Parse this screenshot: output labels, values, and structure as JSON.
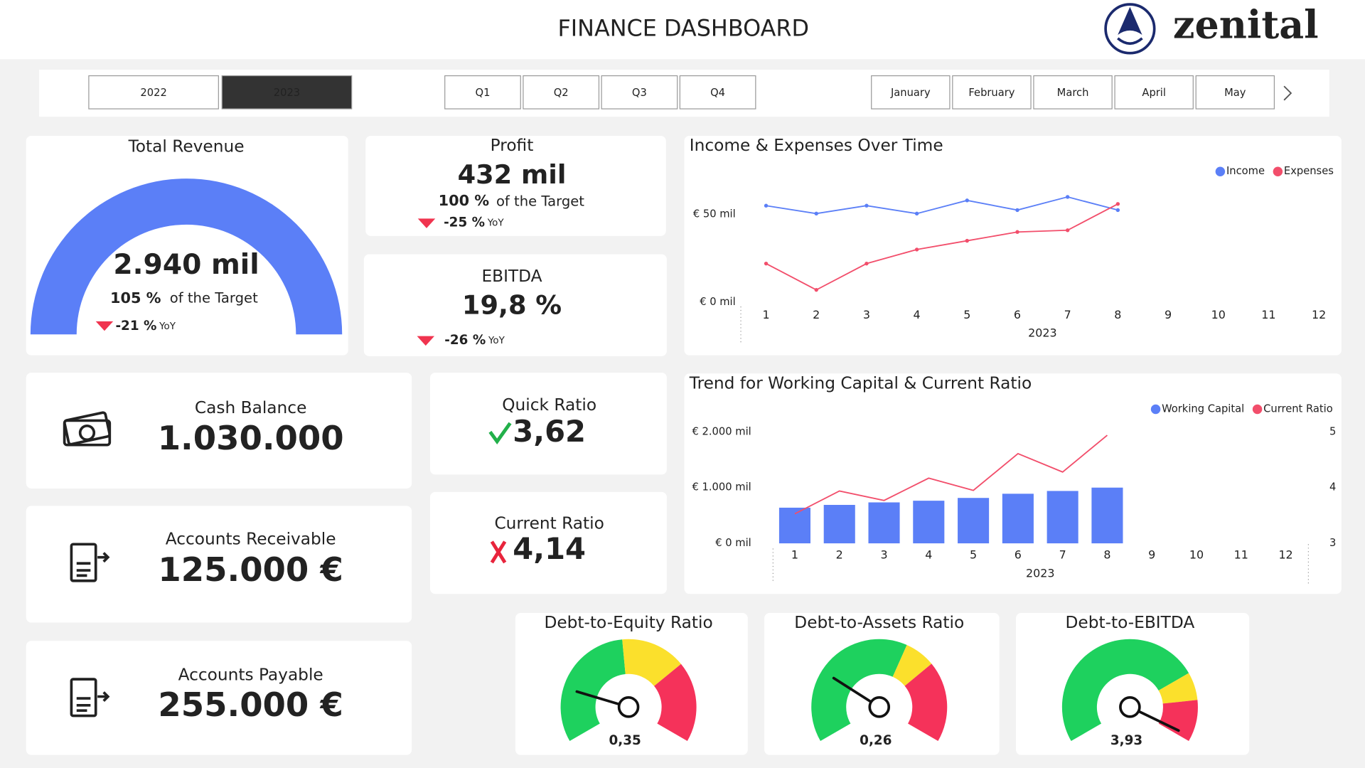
{
  "header": {
    "title": "FINANCE DASHBOARD",
    "logo": "zenital"
  },
  "filters": {
    "years": [
      "2022",
      "2023"
    ],
    "selected_year": "2023",
    "quarters": [
      "Q1",
      "Q2",
      "Q3",
      "Q4"
    ],
    "months": [
      "January",
      "February",
      "March",
      "April",
      "May"
    ]
  },
  "total_revenue": {
    "title": "Total Revenue",
    "value": "2.940 mil",
    "target_pct": "105 %",
    "target_text": "of the Target",
    "yoy": "-21 %",
    "yoy_unit": "YoY"
  },
  "profit": {
    "title": "Profit",
    "value": "432 mil",
    "target_pct": "100 %",
    "target_text": "of the Target",
    "yoy": "-25 %",
    "yoy_unit": "YoY"
  },
  "ebitda": {
    "title": "EBITDA",
    "value": "19,8 %",
    "yoy": "-26 %",
    "yoy_unit": "YoY"
  },
  "balances": [
    {
      "title": "Cash Balance",
      "value": "1.030.000"
    },
    {
      "title": "Accounts Receivable",
      "value": "125.000 €"
    },
    {
      "title": "Accounts Payable",
      "value": "255.000 €"
    }
  ],
  "ratios": [
    {
      "title": "Quick Ratio",
      "value": "3,62"
    },
    {
      "title": "Current Ratio",
      "value": "4,14"
    }
  ],
  "gauges": [
    {
      "title": "Debt-to-Equity Ratio",
      "value": 0.35,
      "value_label": "0,35",
      "lim": [
        0,
        1.8
      ],
      "zones": [
        0.86,
        1.28
      ]
    },
    {
      "title": "Debt-to-Assets Ratio",
      "value": 0.26,
      "value_label": "0,26",
      "lim": [
        0,
        1
      ],
      "zones": [
        0.6,
        0.71
      ]
    },
    {
      "title": "Debt-to-EBITDA",
      "value": 3.93,
      "value_label": "3,93",
      "lim": [
        0,
        4
      ],
      "zones": [
        3.0,
        3.4
      ]
    }
  ],
  "chart_data": [
    {
      "type": "line",
      "title": "Income & Expenses Over Time",
      "categories": [
        "1",
        "2",
        "3",
        "4",
        "5",
        "6",
        "7",
        "8",
        "9",
        "10",
        "11",
        "12"
      ],
      "x_label": "2023",
      "ylim": [
        0,
        70
      ],
      "yticks": [
        {
          "value": 0,
          "label": "€ 0 mil"
        },
        {
          "value": 50,
          "label": "€ 50 mil"
        }
      ],
      "grid": false,
      "legend": "top-right",
      "series": [
        {
          "name": "Income",
          "color": "#5b7ff7",
          "values": [
            55,
            50.5,
            55,
            50.5,
            58,
            52.5,
            60,
            52.5,
            null,
            null,
            null,
            null
          ]
        },
        {
          "name": "Expenses",
          "color": "#f24e6b",
          "values": [
            22,
            7,
            22,
            30,
            35,
            40,
            41,
            56,
            null,
            null,
            null,
            null
          ]
        }
      ]
    },
    {
      "type": "bar",
      "title": "Trend for Working Capital & Current Ratio",
      "categories": [
        "1",
        "2",
        "3",
        "4",
        "5",
        "6",
        "7",
        "8",
        "9",
        "10",
        "11",
        "12"
      ],
      "x_label": "2023",
      "ylim": [
        0,
        2000
      ],
      "yticks": [
        {
          "value": 0,
          "label": "€ 0 mil"
        },
        {
          "value": 1000,
          "label": "€ 1.000 mil"
        },
        {
          "value": 2000,
          "label": "€ 2.000 mil"
        }
      ],
      "y2lim": [
        3,
        5
      ],
      "y2ticks": [
        3,
        4,
        5
      ],
      "grid": false,
      "legend": "top-right",
      "series": [
        {
          "name": "Working Capital",
          "type": "bar",
          "color": "#5b7ff7",
          "values": [
            640,
            690,
            735,
            765,
            815,
            890,
            940,
            1000,
            null,
            null,
            null,
            null
          ]
        },
        {
          "name": "Current Ratio",
          "type": "line",
          "axis": "y2",
          "color": "#f24e6b",
          "values": [
            3.53,
            3.94,
            3.77,
            4.17,
            3.95,
            4.61,
            4.28,
            4.94,
            null,
            null,
            null,
            null
          ]
        }
      ]
    }
  ]
}
